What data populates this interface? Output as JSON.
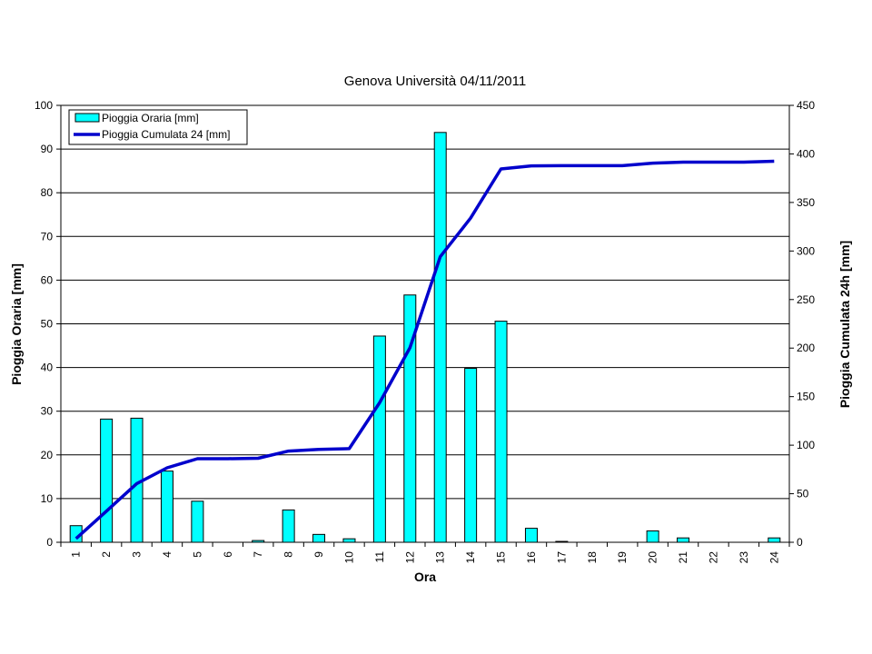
{
  "chart_data": {
    "type": "bar+line",
    "title": "Genova Università 04/11/2011",
    "xlabel": "Ora",
    "ylabel_left": "Pioggia Oraria [mm]",
    "ylabel_right": "Pioggia Cumulata 24h  [mm]",
    "categories": [
      "1",
      "2",
      "3",
      "4",
      "5",
      "6",
      "7",
      "8",
      "9",
      "10",
      "11",
      "12",
      "13",
      "14",
      "15",
      "16",
      "17",
      "18",
      "19",
      "20",
      "21",
      "22",
      "23",
      "24"
    ],
    "ylim_left": [
      0,
      100
    ],
    "ylim_right": [
      0,
      450
    ],
    "yticks_left": [
      "0",
      "10",
      "20",
      "30",
      "40",
      "50",
      "60",
      "70",
      "80",
      "90",
      "100"
    ],
    "yticks_right": [
      "0",
      "50",
      "100",
      "150",
      "200",
      "250",
      "300",
      "350",
      "400",
      "450"
    ],
    "grid": "horizontal",
    "legend_position": "top-left",
    "series": [
      {
        "name": "Pioggia Oraria [mm]",
        "type": "bar",
        "axis": "left",
        "color": "#00FFFF",
        "values": [
          3.8,
          28.2,
          28.4,
          16.3,
          9.4,
          0,
          0.4,
          7.4,
          1.8,
          0.8,
          47.2,
          56.6,
          93.8,
          39.8,
          50.6,
          3.2,
          0.2,
          0,
          0,
          2.6,
          1.0,
          0,
          0,
          1.0
        ]
      },
      {
        "name": "Pioggia Cumulata 24 [mm]",
        "type": "line",
        "axis": "right",
        "color": "#0000CC",
        "values": [
          3.8,
          32,
          60.4,
          76.7,
          86.1,
          86.1,
          86.5,
          93.9,
          95.7,
          96.5,
          143.7,
          200.3,
          294.1,
          333.9,
          384.5,
          387.7,
          387.9,
          387.9,
          387.9,
          390.5,
          391.5,
          391.5,
          391.5,
          392.5
        ]
      }
    ]
  }
}
